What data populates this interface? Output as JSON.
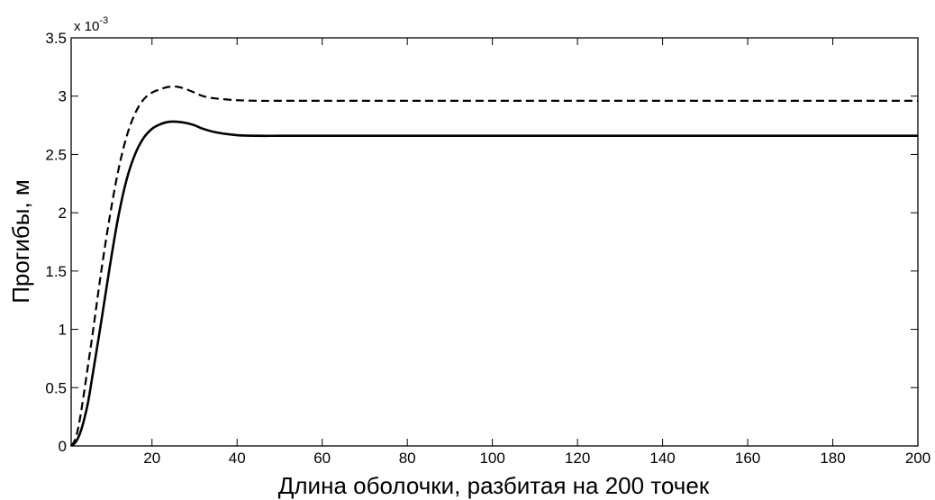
{
  "chart_data": {
    "type": "line",
    "title": "",
    "xlabel": "Длина оболочки, разбитая на 200 точек",
    "ylabel": "Прогибы, м",
    "y_multiplier": {
      "base": "x 10",
      "exponent": "-3"
    },
    "xlim": [
      1,
      200
    ],
    "ylim": [
      0,
      3.5
    ],
    "xticks": [
      20,
      40,
      60,
      80,
      100,
      120,
      140,
      160,
      180,
      200
    ],
    "xtick_labels": [
      "20",
      "40",
      "60",
      "80",
      "100",
      "120",
      "140",
      "160",
      "180",
      "200"
    ],
    "yticks": [
      0,
      0.5,
      1,
      1.5,
      2,
      2.5,
      3,
      3.5
    ],
    "ytick_labels": [
      "0",
      "0.5",
      "1",
      "1.5",
      "2",
      "2.5",
      "3",
      "3.5"
    ],
    "grid": false,
    "series": [
      {
        "style": "solid",
        "color": "#000000",
        "x": [
          1,
          2,
          3,
          4,
          5,
          6,
          8,
          10,
          12,
          14,
          16,
          18,
          20,
          22,
          24,
          26,
          28,
          30,
          32,
          35,
          40,
          45,
          50,
          60,
          80,
          100,
          120,
          140,
          160,
          180,
          200
        ],
        "y": [
          0.0,
          0.03,
          0.1,
          0.22,
          0.38,
          0.6,
          1.05,
          1.52,
          1.95,
          2.28,
          2.5,
          2.64,
          2.72,
          2.76,
          2.78,
          2.78,
          2.77,
          2.75,
          2.72,
          2.69,
          2.665,
          2.66,
          2.66,
          2.66,
          2.66,
          2.66,
          2.66,
          2.66,
          2.66,
          2.66,
          2.66
        ]
      },
      {
        "style": "dashed",
        "color": "#000000",
        "x": [
          1,
          2,
          3,
          4,
          5,
          6,
          8,
          10,
          12,
          14,
          16,
          18,
          20,
          22,
          24,
          26,
          28,
          30,
          32,
          35,
          40,
          45,
          50,
          60,
          80,
          100,
          120,
          140,
          160,
          180,
          200
        ],
        "y": [
          0.0,
          0.06,
          0.22,
          0.45,
          0.7,
          0.95,
          1.48,
          1.95,
          2.35,
          2.65,
          2.85,
          2.97,
          3.03,
          3.06,
          3.08,
          3.08,
          3.06,
          3.03,
          3.0,
          2.98,
          2.965,
          2.96,
          2.96,
          2.96,
          2.96,
          2.96,
          2.96,
          2.96,
          2.96,
          2.96,
          2.96
        ]
      }
    ]
  }
}
